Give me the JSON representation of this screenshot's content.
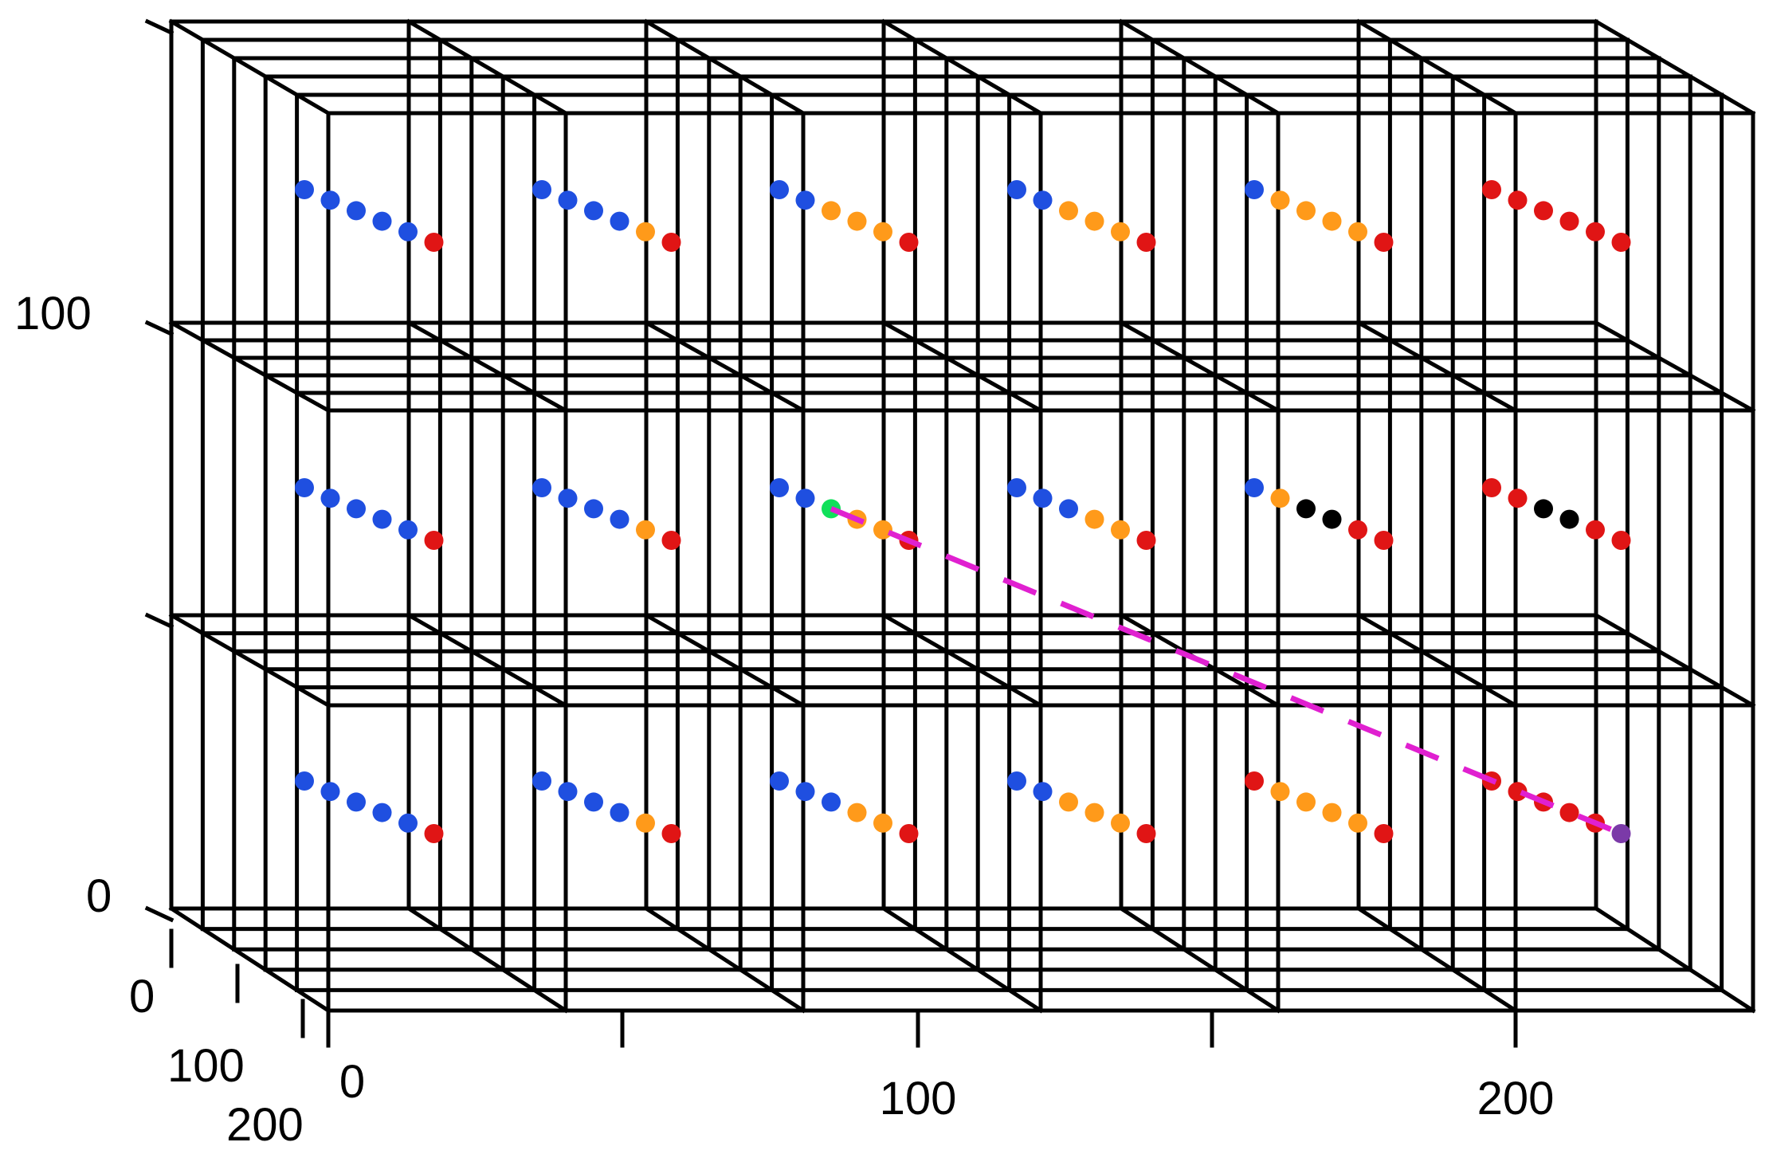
{
  "chart_data": {
    "type": "scatter",
    "projection": "3d",
    "title": "",
    "xlabel": "",
    "ylabel": "",
    "zlabel": "",
    "x_ticks": [
      "0",
      "100",
      "200"
    ],
    "y_ticks": [
      "0",
      "100",
      "200"
    ],
    "z_ticks": [
      "0",
      "100"
    ],
    "grid": true,
    "grid_columns": 6,
    "grid_rows": 3,
    "colors": {
      "blue": "#1f4fe0",
      "orange": "#ff9a1a",
      "red": "#e01515",
      "black": "#000000",
      "green": "#10e05a",
      "purple": "#7b3aa8",
      "path": "#e020d0"
    },
    "cells": [
      {
        "row": 0,
        "col": 0,
        "points": [
          "blue",
          "blue",
          "blue",
          "blue",
          "blue",
          "red"
        ]
      },
      {
        "row": 0,
        "col": 1,
        "points": [
          "blue",
          "blue",
          "blue",
          "blue",
          "orange",
          "red"
        ]
      },
      {
        "row": 0,
        "col": 2,
        "points": [
          "blue",
          "blue",
          "orange",
          "orange",
          "orange",
          "red"
        ]
      },
      {
        "row": 0,
        "col": 3,
        "points": [
          "blue",
          "blue",
          "orange",
          "orange",
          "orange",
          "red"
        ]
      },
      {
        "row": 0,
        "col": 4,
        "points": [
          "blue",
          "orange",
          "orange",
          "orange",
          "orange",
          "red"
        ]
      },
      {
        "row": 0,
        "col": 5,
        "points": [
          "red",
          "red",
          "red",
          "red",
          "red",
          "red"
        ]
      },
      {
        "row": 1,
        "col": 0,
        "points": [
          "blue",
          "blue",
          "blue",
          "blue",
          "blue",
          "red"
        ]
      },
      {
        "row": 1,
        "col": 1,
        "points": [
          "blue",
          "blue",
          "blue",
          "blue",
          "orange",
          "red"
        ]
      },
      {
        "row": 1,
        "col": 2,
        "points": [
          "blue",
          "blue",
          "green",
          "orange",
          "orange",
          "red"
        ]
      },
      {
        "row": 1,
        "col": 3,
        "points": [
          "blue",
          "blue",
          "blue",
          "orange",
          "orange",
          "red"
        ]
      },
      {
        "row": 1,
        "col": 4,
        "points": [
          "blue",
          "orange",
          "black",
          "black",
          "red",
          "red"
        ]
      },
      {
        "row": 1,
        "col": 5,
        "points": [
          "red",
          "red",
          "black",
          "black",
          "red",
          "red"
        ]
      },
      {
        "row": 2,
        "col": 0,
        "points": [
          "blue",
          "blue",
          "blue",
          "blue",
          "blue",
          "red"
        ]
      },
      {
        "row": 2,
        "col": 1,
        "points": [
          "blue",
          "blue",
          "blue",
          "blue",
          "orange",
          "red"
        ]
      },
      {
        "row": 2,
        "col": 2,
        "points": [
          "blue",
          "blue",
          "blue",
          "orange",
          "orange",
          "red"
        ]
      },
      {
        "row": 2,
        "col": 3,
        "points": [
          "blue",
          "blue",
          "orange",
          "orange",
          "orange",
          "red"
        ]
      },
      {
        "row": 2,
        "col": 4,
        "points": [
          "red",
          "orange",
          "orange",
          "orange",
          "orange",
          "red"
        ]
      },
      {
        "row": 2,
        "col": 5,
        "points": [
          "red",
          "red",
          "red",
          "red",
          "red",
          "purple"
        ]
      }
    ],
    "path": {
      "style": "dashed",
      "from": {
        "row": 1,
        "col": 2,
        "point": 2
      },
      "to": {
        "row": 2,
        "col": 5,
        "point": 5
      }
    }
  }
}
